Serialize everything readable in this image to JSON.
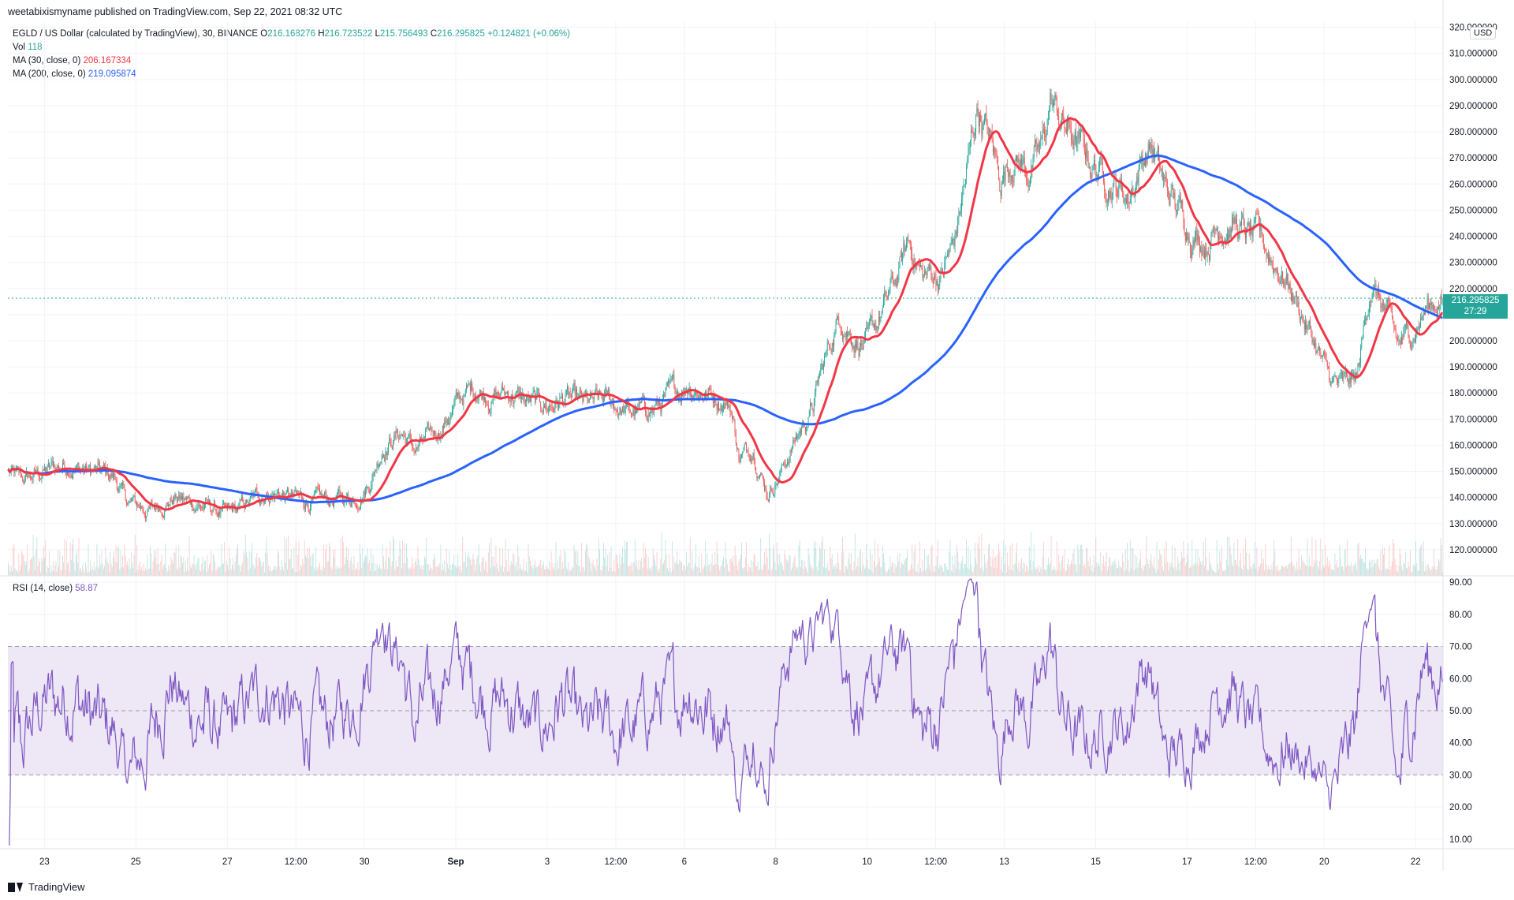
{
  "header": {
    "published": "weetabixismyname published on TradingView.com, Sep 22, 2021 08:32 UTC"
  },
  "legend": {
    "symbol": "EGLD / US Dollar (calculated by TradingView), 30, BINANCE",
    "ohlc": {
      "open_label": "O",
      "open": "216.168276",
      "high_label": "H",
      "high": "216.723522",
      "low_label": "L",
      "low": "215.756493",
      "close_label": "C",
      "close": "216.295825",
      "change": "+0.124821 (+0.06%)"
    },
    "vol_label": "Vol",
    "vol": "118",
    "ma30_label": "MA (30, close, 0)",
    "ma30": "206.167334",
    "ma200_label": "MA (200, close, 0)",
    "ma200": "219.095874",
    "rsi_label": "RSI (14, close)",
    "rsi": "58.87"
  },
  "currency": "USD",
  "last_price": {
    "price": "216.295825",
    "countdown": "27:29"
  },
  "footer": {
    "brand": "TradingView"
  },
  "colors": {
    "up": "#26a69a",
    "down": "#ef5350",
    "ma30": "#f23645",
    "ma200": "#2962ff",
    "rsi": "#7e57c2",
    "rsi_band": "#ede7f6",
    "grid": "#f0f3fa"
  },
  "chart_data": [
    {
      "type": "candlestick",
      "title": "",
      "y_ticks": [
        "120.000000",
        "130.000000",
        "140.000000",
        "150.000000",
        "160.000000",
        "170.000000",
        "180.000000",
        "190.000000",
        "200.000000",
        "210.000000",
        "220.000000",
        "230.000000",
        "240.000000",
        "250.000000",
        "260.000000",
        "270.000000",
        "280.000000",
        "290.000000",
        "300.000000",
        "310.000000",
        "320.000000"
      ],
      "x_ticks": [
        "23",
        "25",
        "27",
        "12:00",
        "30",
        "Sep",
        "3",
        "12:00",
        "6",
        "8",
        "10",
        "12:00",
        "13",
        "15",
        "17",
        "12:00",
        "20",
        "22"
      ],
      "ylim": [
        110,
        322
      ],
      "x_range_days": [
        22.2,
        53.6
      ],
      "price_waypoints": [
        [
          22.2,
          150
        ],
        [
          22.5,
          146
        ],
        [
          23.0,
          150
        ],
        [
          23.5,
          153
        ],
        [
          24.0,
          150
        ],
        [
          24.5,
          148
        ],
        [
          24.8,
          138
        ],
        [
          25.3,
          135
        ],
        [
          25.8,
          140
        ],
        [
          26.2,
          138
        ],
        [
          26.6,
          136
        ],
        [
          27.0,
          133
        ],
        [
          27.4,
          137
        ],
        [
          27.8,
          142
        ],
        [
          28.2,
          141
        ],
        [
          28.8,
          138
        ],
        [
          29.4,
          139
        ],
        [
          29.8,
          140
        ],
        [
          30.1,
          146
        ],
        [
          30.4,
          160
        ],
        [
          30.8,
          165
        ],
        [
          31.1,
          158
        ],
        [
          31.4,
          162
        ],
        [
          31.7,
          168
        ],
        [
          32.1,
          178
        ],
        [
          32.4,
          182
        ],
        [
          32.8,
          179
        ],
        [
          33.2,
          180
        ],
        [
          33.6,
          176
        ],
        [
          34.0,
          175
        ],
        [
          34.4,
          178
        ],
        [
          34.8,
          175
        ],
        [
          35.3,
          177
        ],
        [
          35.8,
          172
        ],
        [
          36.3,
          174
        ],
        [
          36.8,
          180
        ],
        [
          37.1,
          184
        ],
        [
          37.4,
          181
        ],
        [
          37.8,
          178
        ],
        [
          38.0,
          175
        ],
        [
          38.2,
          155
        ],
        [
          38.5,
          160
        ],
        [
          38.8,
          142
        ],
        [
          39.1,
          150
        ],
        [
          39.5,
          165
        ],
        [
          39.8,
          175
        ],
        [
          40.1,
          195
        ],
        [
          40.4,
          210
        ],
        [
          40.7,
          202
        ],
        [
          41.0,
          198
        ],
        [
          41.3,
          210
        ],
        [
          41.6,
          222
        ],
        [
          41.9,
          238
        ],
        [
          42.2,
          225
        ],
        [
          42.6,
          225
        ],
        [
          42.9,
          238
        ],
        [
          43.2,
          268
        ],
        [
          43.4,
          290
        ],
        [
          43.7,
          275
        ],
        [
          43.9,
          262
        ],
        [
          44.2,
          272
        ],
        [
          44.5,
          265
        ],
        [
          44.8,
          272
        ],
        [
          45.0,
          292
        ],
        [
          45.3,
          282
        ],
        [
          45.6,
          275
        ],
        [
          45.9,
          268
        ],
        [
          46.3,
          262
        ],
        [
          46.7,
          255
        ],
        [
          47.0,
          270
        ],
        [
          47.2,
          275
        ],
        [
          47.5,
          258
        ],
        [
          47.8,
          250
        ],
        [
          48.1,
          242
        ],
        [
          48.4,
          238
        ],
        [
          48.7,
          245
        ],
        [
          49.0,
          245
        ],
        [
          49.3,
          240
        ],
        [
          49.6,
          238
        ],
        [
          49.9,
          230
        ],
        [
          50.2,
          222
        ],
        [
          50.5,
          210
        ],
        [
          50.8,
          198
        ],
        [
          51.1,
          185
        ],
        [
          51.4,
          182
        ],
        [
          51.7,
          185
        ],
        [
          52.0,
          222
        ],
        [
          52.3,
          212
        ],
        [
          52.6,
          198
        ],
        [
          52.9,
          203
        ],
        [
          53.2,
          212
        ],
        [
          53.5,
          216.3
        ]
      ],
      "ma30_last": 206.167334,
      "ma200_last": 219.095874,
      "last_close": 216.295825
    },
    {
      "type": "line",
      "title": "RSI (14, close)",
      "y_ticks": [
        "10.00",
        "20.00",
        "30.00",
        "40.00",
        "50.00",
        "60.00",
        "70.00",
        "80.00",
        "90.00"
      ],
      "ylim": [
        7,
        92
      ],
      "band": [
        30,
        70
      ],
      "midline": 50,
      "last_value": 58.87
    }
  ]
}
